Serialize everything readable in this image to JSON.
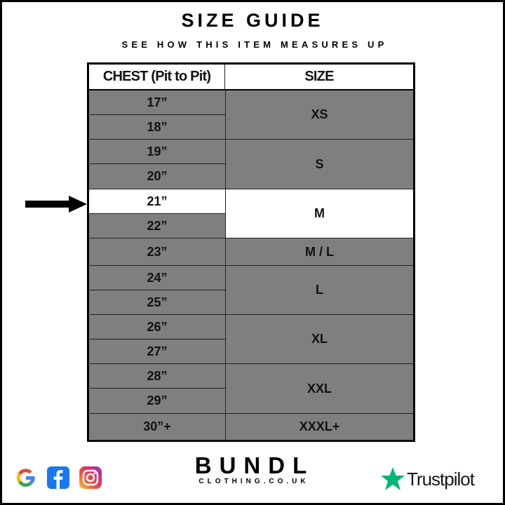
{
  "title": "SIZE GUIDE",
  "subtitle": "SEE HOW THIS ITEM MEASURES UP",
  "table": {
    "headers": [
      "CHEST (Pit to Pit)",
      "SIZE"
    ],
    "chest": [
      "17”",
      "18”",
      "19”",
      "20”",
      "21”",
      "22”",
      "23”",
      "24”",
      "25”",
      "26”",
      "27”",
      "28”",
      "29”",
      "30”+"
    ],
    "sizes": [
      {
        "label": "XS",
        "rows": 2
      },
      {
        "label": "S",
        "rows": 2
      },
      {
        "label": "M",
        "rows": 2
      },
      {
        "label": "M / L",
        "rows": 1
      },
      {
        "label": "L",
        "rows": 2
      },
      {
        "label": "XL",
        "rows": 2
      },
      {
        "label": "XXL",
        "rows": 2
      },
      {
        "label": "XXXL+",
        "rows": 1
      }
    ],
    "highlighted_chest": "21”",
    "highlighted_size": "M"
  },
  "colors": {
    "cell": "#7f7f7f",
    "highlight": "#ffffff",
    "trustpilot": "#00b67a"
  },
  "footer": {
    "brand": "BUNDL",
    "brand_sub": "CLOTHING.CO.UK",
    "trustpilot": "Trustpilot",
    "social": [
      "google-icon",
      "facebook-icon",
      "instagram-icon"
    ]
  }
}
